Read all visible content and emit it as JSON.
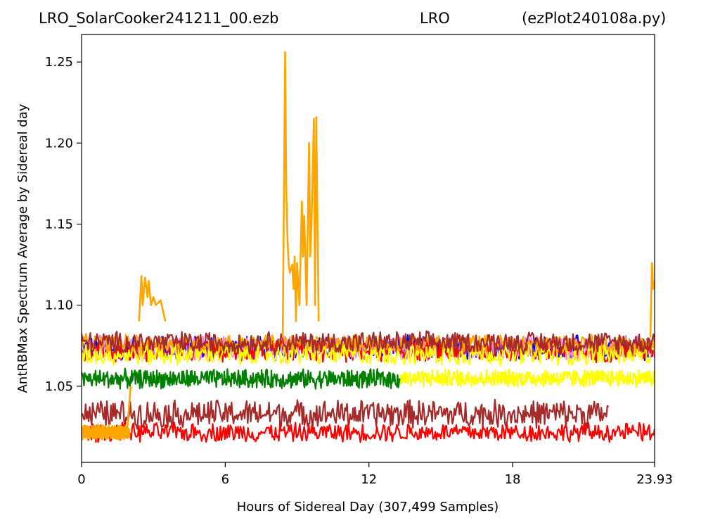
{
  "header": {
    "title_left": "LRO_SolarCooker241211_00.ezb",
    "title_center": "LRO",
    "title_right": "(ezPlot240108a.py)"
  },
  "chart_data": {
    "type": "line",
    "xlabel": "Hours of Sidereal Day  (307,499 Samples)",
    "ylabel": "AntRBMax Spectrum Average by Sidereal day",
    "xlim": [
      0,
      23.93
    ],
    "ylim": [
      1.003,
      1.267
    ],
    "x_ticks": [
      0,
      6,
      12,
      18,
      23.93
    ],
    "x_tick_labels": [
      "0",
      "6",
      "12",
      "18",
      "23.93"
    ],
    "y_ticks": [
      1.05,
      1.1,
      1.15,
      1.2,
      1.25
    ],
    "y_tick_labels": [
      "1.05",
      "1.10",
      "1.15",
      "1.20",
      "1.25"
    ],
    "grid": false,
    "legend": "none",
    "series": [
      {
        "color": "#0000ff",
        "x_range": [
          0,
          23.93
        ],
        "base": 1.0735,
        "noise": 0.0085,
        "spike_count": 70
      },
      {
        "color": "#ee82ee",
        "x_range": [
          0,
          23.93
        ],
        "base": 1.0735,
        "noise": 0.0085,
        "spike_count": 70
      },
      {
        "color": "#ff0000",
        "x_range": [
          0,
          23.93
        ],
        "base": 1.072,
        "noise": 0.008,
        "spike_count": 60
      },
      {
        "color": "#ffff00",
        "x_range": [
          0,
          23.93
        ],
        "base": 1.07,
        "noise": 0.008,
        "spike_count": 40
      },
      {
        "color": "#ffa500",
        "x_range": [
          0,
          23.93
        ],
        "base": 1.0765,
        "noise": 0.006,
        "spike_count": 30
      },
      {
        "color": "#a52a2a",
        "x_range": [
          0,
          23.93
        ],
        "base": 1.077,
        "noise": 0.0075,
        "spike_count": 50
      },
      {
        "color": "#ffff00",
        "x_range": [
          13.3,
          23.93
        ],
        "base": 1.055,
        "noise": 0.006,
        "spike_count": 30
      },
      {
        "color": "#008000",
        "x_range": [
          0,
          13.3
        ],
        "base": 1.0545,
        "noise": 0.0065,
        "spike_count": 30
      },
      {
        "color": "#a52a2a",
        "x_range": [
          0,
          22.0
        ],
        "base": 1.033,
        "noise": 0.0095,
        "spike_count": 60
      },
      {
        "color": "#ff0000",
        "x_range": [
          0,
          23.93
        ],
        "base": 1.0215,
        "noise": 0.0065,
        "spike_count": 40
      },
      {
        "color": "#ffa500",
        "x_range": [
          0,
          2.0
        ],
        "base": 1.0215,
        "noise": 0.005,
        "spike_count": 6
      }
    ],
    "orange_features": [
      {
        "x": [
          2.4,
          2.5,
          2.55,
          2.65,
          2.75,
          2.8,
          2.9,
          3.0,
          3.1,
          3.3,
          3.5
        ],
        "y": [
          1.09,
          1.118,
          1.1,
          1.117,
          1.105,
          1.115,
          1.1,
          1.105,
          1.1,
          1.103,
          1.09
        ]
      },
      {
        "x": [
          8.4,
          8.5,
          8.55,
          8.6,
          8.65,
          8.7,
          8.8,
          8.85,
          8.9,
          8.95,
          9.0,
          9.1,
          9.2,
          9.25,
          9.3,
          9.4,
          9.5,
          9.55,
          9.6,
          9.7,
          9.75,
          9.8,
          9.9
        ],
        "y": [
          1.08,
          1.256,
          1.17,
          1.14,
          1.125,
          1.12,
          1.125,
          1.11,
          1.13,
          1.09,
          1.126,
          1.1,
          1.164,
          1.13,
          1.155,
          1.1,
          1.2,
          1.13,
          1.15,
          1.215,
          1.1,
          1.216,
          1.09
        ]
      },
      {
        "x": [
          23.75,
          23.82,
          23.87,
          23.93
        ],
        "y": [
          1.08,
          1.126,
          1.11,
          1.115
        ]
      },
      {
        "x": [
          1.9,
          2.05
        ],
        "y": [
          1.022,
          1.05
        ]
      }
    ]
  }
}
